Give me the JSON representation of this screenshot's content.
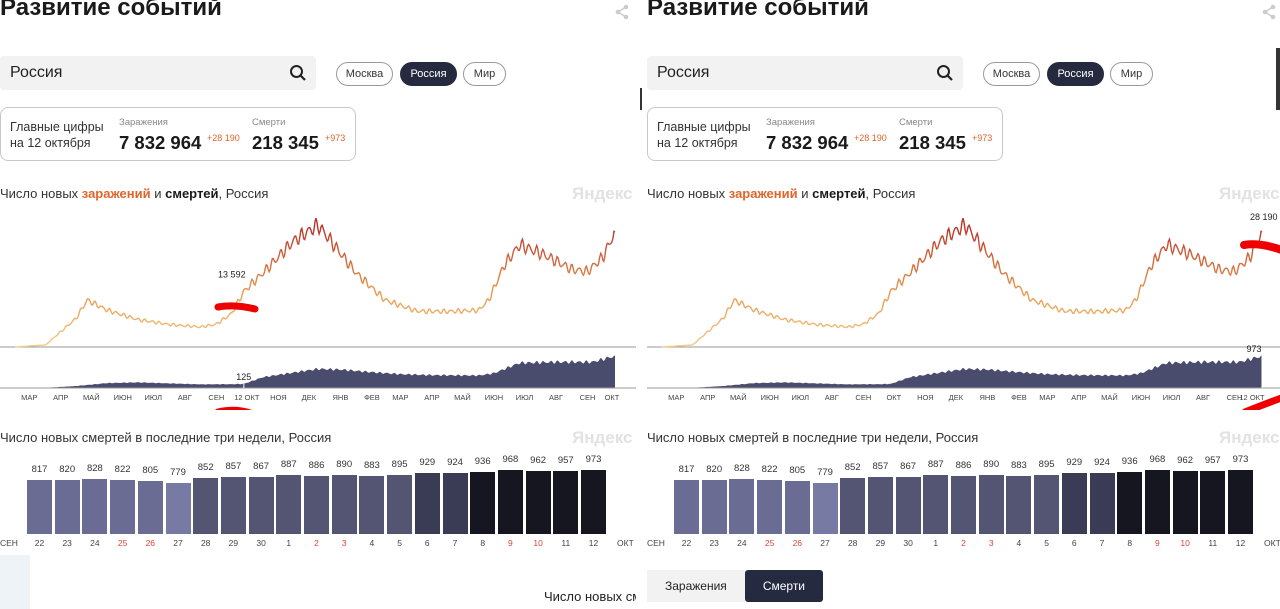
{
  "panels": [
    {
      "title": "Развитие событий",
      "search": {
        "value": "Россия"
      },
      "regions": [
        {
          "label": "Москва",
          "active": false
        },
        {
          "label": "Россия",
          "active": true
        },
        {
          "label": "Мир",
          "active": false
        }
      ],
      "figures": {
        "label_line1": "Главные цифры",
        "label_line2": "на 12 октября",
        "infections_caption": "Заражения",
        "infections_total": "7 832 964",
        "infections_delta": "+28 190",
        "deaths_caption": "Смерти",
        "deaths_total": "218 345",
        "deaths_delta": "+973"
      },
      "chart_title": {
        "prefix": "Число новых ",
        "infections": "заражений",
        "mid": " и ",
        "deaths": "смертей",
        "suffix": ", Россия"
      },
      "watermark": "Яндекс",
      "highlight": {
        "date": "2020-10-12",
        "infections_label": "13 592",
        "deaths_label": "125"
      },
      "month_labels": [
        "МАР",
        "АПР",
        "МАЙ",
        "ИЮН",
        "ИЮЛ",
        "АВГ",
        "СЕН",
        "12 ОКТ",
        "НОЯ",
        "ДЕК",
        "ЯНВ",
        "ФЕВ",
        "МАР",
        "АПР",
        "МАЙ",
        "ИЮН",
        "ИЮЛ",
        "АВГ",
        "СЕН",
        "ОКТ"
      ],
      "bar_title": "Число новых смертей в последние три недели, Россия"
    },
    {
      "title": "Развитие событий",
      "search": {
        "value": "Россия"
      },
      "regions": [
        {
          "label": "Москва",
          "active": false
        },
        {
          "label": "Россия",
          "active": true
        },
        {
          "label": "Мир",
          "active": false
        }
      ],
      "figures": {
        "label_line1": "Главные цифры",
        "label_line2": "на 12 октября",
        "infections_caption": "Заражения",
        "infections_total": "7 832 964",
        "infections_delta": "+28 190",
        "deaths_caption": "Смерти",
        "deaths_total": "218 345",
        "deaths_delta": "+973"
      },
      "chart_title": {
        "prefix": "Число новых ",
        "infections": "заражений",
        "mid": " и ",
        "deaths": "смертей",
        "suffix": ", Россия"
      },
      "watermark": "Яндекс",
      "highlight": {
        "date": "2021-10-12",
        "infections_label": "28 190",
        "deaths_label": "973"
      },
      "month_labels": [
        "МАР",
        "АПР",
        "МАЙ",
        "ИЮН",
        "ИЮЛ",
        "АВГ",
        "СЕН",
        "ОКТ",
        "НОЯ",
        "ДЕК",
        "ЯНВ",
        "ФЕВ",
        "МАР",
        "АПР",
        "МАЙ",
        "ИЮН",
        "ИЮЛ",
        "АВГ",
        "СЕН",
        "12 ОКТ"
      ],
      "bar_title": "Число новых смертей в последние три недели, Россия",
      "tabs": [
        {
          "label": "Заражения",
          "active": false
        },
        {
          "label": "Смерти",
          "active": true
        }
      ]
    }
  ],
  "left_bottom_text": "Число новых сме",
  "chart_data": [
    {
      "type": "line",
      "series": [
        {
          "name": "заражений",
          "color": "#c0392b",
          "points": [
            [
              "2020-03-01",
              0
            ],
            [
              "2020-03-31",
              500
            ],
            [
              "2020-04-30",
              7000
            ],
            [
              "2020-05-11",
              11500
            ],
            [
              "2020-05-31",
              9000
            ],
            [
              "2020-06-30",
              6700
            ],
            [
              "2020-07-31",
              5500
            ],
            [
              "2020-08-31",
              4900
            ],
            [
              "2020-09-15",
              5600
            ],
            [
              "2020-09-30",
              8200
            ],
            [
              "2020-10-12",
              13592
            ],
            [
              "2020-10-31",
              18200
            ],
            [
              "2020-11-30",
              26000
            ],
            [
              "2020-12-24",
              29900
            ],
            [
              "2021-01-15",
              23000
            ],
            [
              "2021-01-31",
              18000
            ],
            [
              "2021-02-28",
              11500
            ],
            [
              "2021-03-31",
              8800
            ],
            [
              "2021-04-30",
              8700
            ],
            [
              "2021-05-31",
              9000
            ],
            [
              "2021-06-10",
              11600
            ],
            [
              "2021-06-25",
              20000
            ],
            [
              "2021-07-10",
              25000
            ],
            [
              "2021-07-31",
              23000
            ],
            [
              "2021-08-31",
              19000
            ],
            [
              "2021-09-15",
              18500
            ],
            [
              "2021-09-30",
              22000
            ],
            [
              "2021-10-12",
              28190
            ]
          ]
        },
        {
          "name": "смертей",
          "color": "#4a4c6e",
          "points": [
            [
              "2020-03-01",
              0
            ],
            [
              "2020-03-31",
              5
            ],
            [
              "2020-04-30",
              60
            ],
            [
              "2020-05-31",
              150
            ],
            [
              "2020-06-30",
              170
            ],
            [
              "2020-07-31",
              140
            ],
            [
              "2020-08-31",
              110
            ],
            [
              "2020-09-30",
              115
            ],
            [
              "2020-10-12",
              125
            ],
            [
              "2020-10-31",
              330
            ],
            [
              "2020-11-30",
              470
            ],
            [
              "2020-12-24",
              580
            ],
            [
              "2021-01-15",
              560
            ],
            [
              "2021-02-15",
              480
            ],
            [
              "2021-03-15",
              420
            ],
            [
              "2021-04-15",
              390
            ],
            [
              "2021-05-31",
              380
            ],
            [
              "2021-06-15",
              450
            ],
            [
              "2021-07-10",
              760
            ],
            [
              "2021-08-15",
              790
            ],
            [
              "2021-09-20",
              790
            ],
            [
              "2021-10-12",
              973
            ]
          ]
        }
      ],
      "xrange": [
        "2020-03-01",
        "2021-10-12"
      ]
    },
    {
      "type": "bar",
      "title": "Число новых смертей в последние три недели, Россия",
      "categories": [
        "22",
        "23",
        "24",
        "25",
        "26",
        "27",
        "28",
        "29",
        "30",
        "1",
        "2",
        "3",
        "4",
        "5",
        "6",
        "7",
        "8",
        "9",
        "10",
        "11",
        "12"
      ],
      "values": [
        817,
        820,
        828,
        822,
        805,
        779,
        852,
        857,
        867,
        887,
        886,
        890,
        883,
        895,
        929,
        924,
        936,
        968,
        962,
        957,
        973
      ],
      "weekend_days": [
        "25",
        "26",
        "2",
        "3",
        "9",
        "10"
      ],
      "x_edge_labels": [
        "СЕН",
        "ОКТ"
      ],
      "ylim": [
        0,
        1000
      ]
    }
  ],
  "colors": {
    "accent": "#e0652b",
    "active_pill": "#262a40"
  }
}
